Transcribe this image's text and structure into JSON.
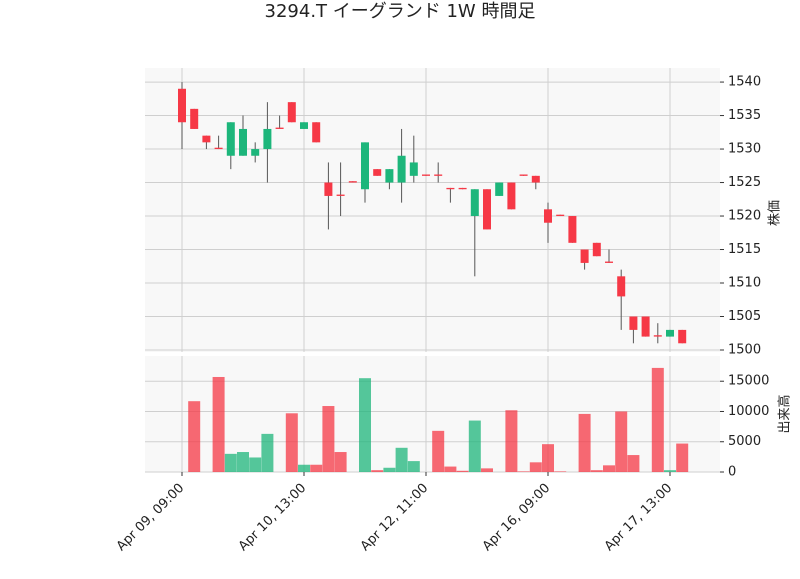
{
  "chart_data": {
    "type": "candlestick",
    "title": "3294.T イーグランド 1W 時間足",
    "ylabel": "株価",
    "y2label": "出来高",
    "colors": {
      "up": "#1db67b",
      "down": "#f63846"
    },
    "categories": [
      "Apr 09, 09:00",
      null,
      null,
      null,
      null,
      null,
      null,
      null,
      null,
      null,
      "Apr 10, 13:00",
      null,
      null,
      null,
      null,
      null,
      null,
      null,
      null,
      null,
      "Apr 12, 11:00",
      null,
      null,
      null,
      null,
      null,
      null,
      null,
      null,
      null,
      "Apr 16, 09:00",
      null,
      null,
      null,
      null,
      null,
      null,
      null,
      null,
      null,
      "Apr 17, 13:00",
      null
    ],
    "open": [
      1539,
      1536,
      1532,
      1530.2,
      1529,
      1529,
      1529,
      1530,
      1533.2,
      1537,
      1533,
      1534,
      1525,
      1523.2,
      1525.2,
      1524,
      1527,
      1525,
      1525,
      1526,
      1526.2,
      1526.2,
      1524.2,
      1524.2,
      1520,
      1524,
      1523,
      1525,
      1526.2,
      1526,
      1521,
      1520.2,
      1520,
      1515,
      1516,
      1513.2,
      1511,
      1505,
      1505,
      1502.2,
      1502,
      1503
    ],
    "high": [
      1540,
      1536,
      1532,
      1532,
      1534,
      1535,
      1531,
      1537,
      1535,
      1537,
      1534,
      1534,
      1528,
      1528,
      1525.2,
      1531,
      1527,
      1527,
      1533,
      1532,
      1526.2,
      1528,
      1524.2,
      1524.2,
      1524,
      1524,
      1525,
      1525,
      1526.2,
      1526,
      1522,
      1520.2,
      1520,
      1515,
      1516,
      1515,
      1512,
      1505,
      1505,
      1504,
      1503,
      1503
    ],
    "low": [
      1530,
      1533,
      1530,
      1530,
      1527,
      1529,
      1528,
      1525,
      1533,
      1534,
      1533,
      1531,
      1518,
      1520,
      1525,
      1522,
      1526,
      1524,
      1522,
      1525,
      1526,
      1525,
      1522,
      1524,
      1511,
      1518,
      1523,
      1521,
      1526,
      1524,
      1516,
      1520,
      1516,
      1512,
      1514,
      1513,
      1503,
      1501,
      1502,
      1501,
      1502,
      1501
    ],
    "close": [
      1534,
      1533,
      1531,
      1530,
      1534,
      1533,
      1530,
      1533,
      1533,
      1534,
      1534,
      1531,
      1523,
      1523,
      1525,
      1531,
      1526,
      1527,
      1529,
      1528,
      1526,
      1526,
      1524,
      1524,
      1524,
      1518,
      1525,
      1521,
      1526,
      1525,
      1519,
      1520,
      1516,
      1513,
      1514,
      1513,
      1508,
      1503,
      1502,
      1502,
      1503,
      1501
    ],
    "volume": [
      0,
      11700,
      0,
      15700,
      3000,
      3300,
      2400,
      6300,
      0,
      9700,
      1200,
      1200,
      10900,
      3300,
      0,
      15500,
      300,
      700,
      4000,
      1800,
      0,
      6800,
      900,
      200,
      8500,
      600,
      0,
      10200,
      100,
      1600,
      4600,
      100,
      0,
      9600,
      300,
      1100,
      10000,
      2800,
      0,
      17200,
      300,
      4700
    ],
    "ylim": [
      1499.7,
      1542.1
    ],
    "yticks": [
      1500,
      1505,
      1510,
      1515,
      1520,
      1525,
      1530,
      1535,
      1540
    ],
    "y2lim": [
      0,
      19167
    ],
    "y2ticks": [
      0,
      5000,
      10000,
      15000
    ],
    "grid": true
  }
}
